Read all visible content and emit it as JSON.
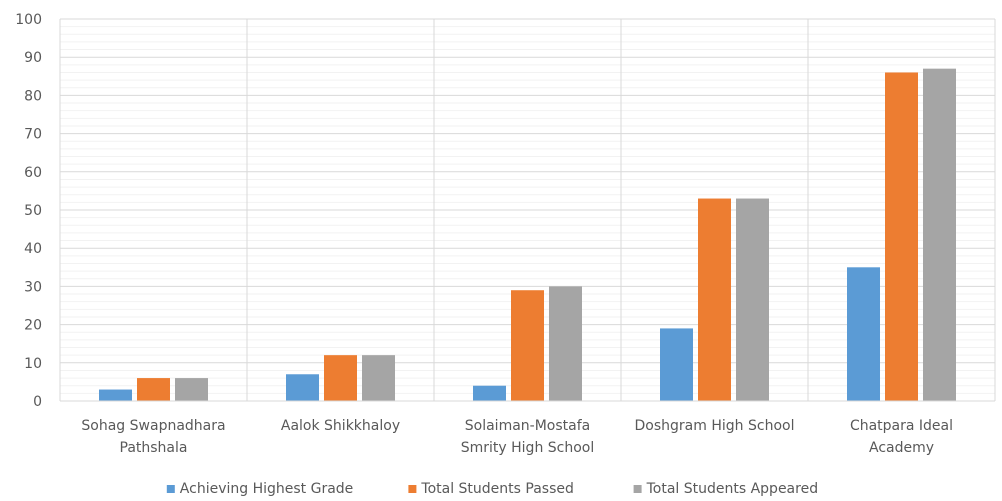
{
  "chart_data": {
    "type": "bar",
    "categories": [
      [
        "Sohag Swapnadhara",
        "Pathshala"
      ],
      [
        "Aalok Shikkhaloy"
      ],
      [
        "Solaiman-Mostafa",
        "Smrity High School"
      ],
      [
        "Doshgram High School"
      ],
      [
        "Chatpara Ideal",
        "Academy"
      ]
    ],
    "series": [
      {
        "name": "Achieving Highest Grade",
        "color": "#5B9BD5",
        "values": [
          3,
          7,
          4,
          19,
          35
        ]
      },
      {
        "name": "Total Students Passed",
        "color": "#ED7D31",
        "values": [
          6,
          12,
          29,
          53,
          86
        ]
      },
      {
        "name": "Total Students Appeared",
        "color": "#A5A5A5",
        "values": [
          6,
          12,
          30,
          53,
          87
        ]
      }
    ],
    "ylim": [
      0,
      100
    ],
    "yticks": [
      0,
      10,
      20,
      30,
      40,
      50,
      60,
      70,
      80,
      90,
      100
    ],
    "grid": true,
    "minor_grid": true,
    "legend_position": "bottom"
  }
}
